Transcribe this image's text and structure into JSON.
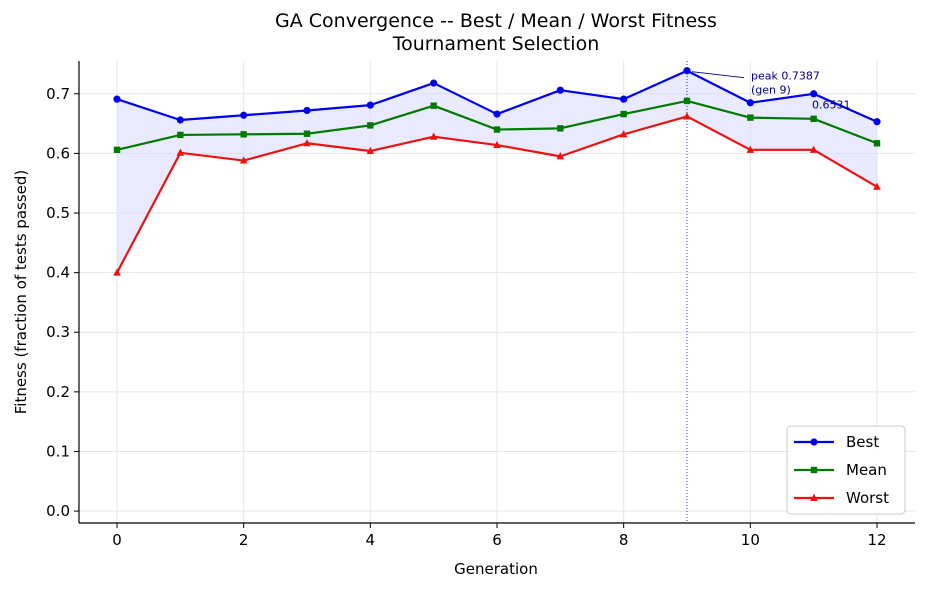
{
  "chart_data": {
    "type": "line",
    "title": "GA Convergence -- Best / Mean / Worst Fitness",
    "subtitle": "Tournament Selection",
    "xlabel": "Generation",
    "ylabel": "Fitness (fraction of tests passed)",
    "xlim": [
      -0.6,
      12.6
    ],
    "ylim": [
      -0.02,
      0.755
    ],
    "xticks": [
      "0",
      "2",
      "4",
      "6",
      "8",
      "10",
      "12"
    ],
    "yticks": [
      "0.0",
      "0.1",
      "0.2",
      "0.3",
      "0.4",
      "0.5",
      "0.6",
      "0.7"
    ],
    "grid": true,
    "legend_position": "bottom-right",
    "x": [
      0,
      1,
      2,
      3,
      4,
      5,
      6,
      7,
      8,
      9,
      10,
      11,
      12
    ],
    "series": [
      {
        "name": "Best",
        "color": "#0000ee",
        "marker": "circle",
        "values": [
          0.691,
          0.656,
          0.664,
          0.672,
          0.681,
          0.718,
          0.666,
          0.706,
          0.691,
          0.7387,
          0.685,
          0.7,
          0.6531
        ]
      },
      {
        "name": "Mean",
        "color": "#007a00",
        "marker": "square",
        "values": [
          0.606,
          0.631,
          0.632,
          0.633,
          0.647,
          0.68,
          0.64,
          0.642,
          0.666,
          0.688,
          0.66,
          0.658,
          0.617
        ]
      },
      {
        "name": "Worst",
        "color": "#ee1111",
        "marker": "triangle",
        "values": [
          0.4,
          0.601,
          0.588,
          0.617,
          0.604,
          0.628,
          0.614,
          0.595,
          0.632,
          0.662,
          0.606,
          0.606,
          0.544
        ]
      }
    ],
    "fill_between": {
      "upper": "Best",
      "lower": "Worst",
      "color": "#dcdcff"
    },
    "vline": {
      "x": 9,
      "color": "#000080",
      "style": "dotted"
    },
    "annotations": [
      {
        "line1": "peak 0.7387",
        "line2": "(gen 9)",
        "x": 9,
        "y": 0.7387
      },
      {
        "text": "0.6531",
        "x": 12,
        "y": 0.6531
      }
    ]
  }
}
